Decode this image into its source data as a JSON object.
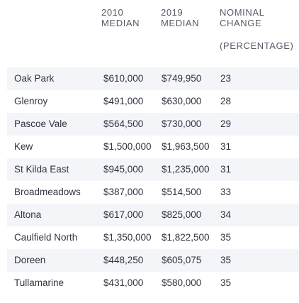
{
  "table": {
    "headers": {
      "y2010": [
        "2010",
        "MEDIAN"
      ],
      "y2019": [
        "2019",
        "MEDIAN"
      ],
      "change": [
        "NOMINAL",
        "CHANGE"
      ],
      "change_unit": "(PERCENTAGE)"
    },
    "rows": [
      {
        "suburb": "Oak Park",
        "median_2010": "$610,000",
        "median_2019": "$749,950",
        "change": "23"
      },
      {
        "suburb": "Glenroy",
        "median_2010": "$491,000",
        "median_2019": "$630,000",
        "change": "28"
      },
      {
        "suburb": "Pascoe Vale",
        "median_2010": "$564,500",
        "median_2019": "$730,000",
        "change": "29"
      },
      {
        "suburb": "Kew",
        "median_2010": "$1,500,000",
        "median_2019": "$1,963,500",
        "change": "31"
      },
      {
        "suburb": "St Kilda East",
        "median_2010": "$945,000",
        "median_2019": "$1,235,000",
        "change": "31"
      },
      {
        "suburb": "Broadmeadows",
        "median_2010": "$387,000",
        "median_2019": "$514,500",
        "change": "33"
      },
      {
        "suburb": "Altona",
        "median_2010": "$617,000",
        "median_2019": "$825,000",
        "change": "34"
      },
      {
        "suburb": "Caulfield North",
        "median_2010": "$1,350,000",
        "median_2019": "$1,822,500",
        "change": "35"
      },
      {
        "suburb": "Doreen",
        "median_2010": "$448,250",
        "median_2019": "$605,075",
        "change": "35"
      },
      {
        "suburb": "Tullamarine",
        "median_2010": "$431,000",
        "median_2019": "$580,000",
        "change": "35"
      }
    ]
  },
  "colors": {
    "stripe": "#f4f5f9",
    "text": "#2f3340",
    "header_text": "#555a66"
  }
}
